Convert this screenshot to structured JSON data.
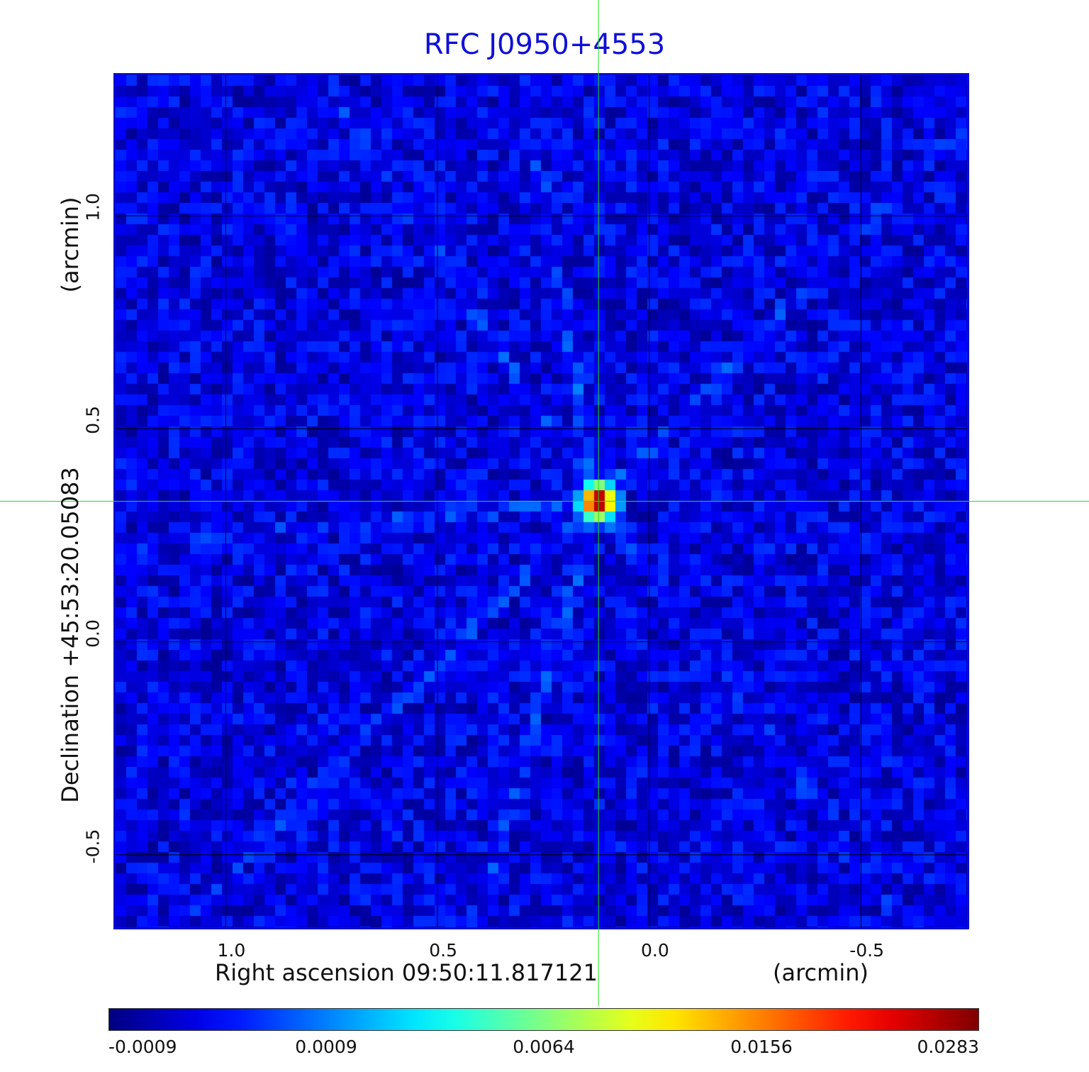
{
  "chart_data": {
    "type": "heatmap",
    "title": "RFC J0950+4553",
    "xlabel": "Right ascension  09:50:11.817121",
    "x_unit": "(arcmin)",
    "ylabel": "Declination  +45:53:20.05083",
    "y_unit": "(arcmin)",
    "xlim": [
      1.26,
      -0.75
    ],
    "ylim": [
      -0.67,
      1.33
    ],
    "x_ticks": [
      {
        "value": 1.0,
        "label": "1.0"
      },
      {
        "value": 0.5,
        "label": "0.5"
      },
      {
        "value": 0.0,
        "label": "0.0"
      },
      {
        "value": -0.5,
        "label": "-0.5"
      }
    ],
    "y_ticks": [
      {
        "value": 1.0,
        "label": "1.0"
      },
      {
        "value": 0.5,
        "label": "0.5"
      },
      {
        "value": 0.0,
        "label": "0.0"
      },
      {
        "value": -0.5,
        "label": "-0.5"
      }
    ],
    "grid": true,
    "source_peak": {
      "x": 0.12,
      "y": 0.33,
      "value": 0.0283
    },
    "crosshair": {
      "x": 0.12,
      "y": 0.33
    },
    "background_level": -0.0002,
    "colorbar": {
      "position": "bottom",
      "colormap": "jet",
      "ticks": [
        "-0.0009",
        "0.0009",
        "0.0064",
        "0.0156",
        "0.0283"
      ],
      "min": -0.0009,
      "max": 0.0283
    },
    "colors": {
      "title": "#1010d8",
      "frame": "#0a0ad0",
      "grid": "#000000",
      "crosshair": "#22dd22"
    }
  }
}
